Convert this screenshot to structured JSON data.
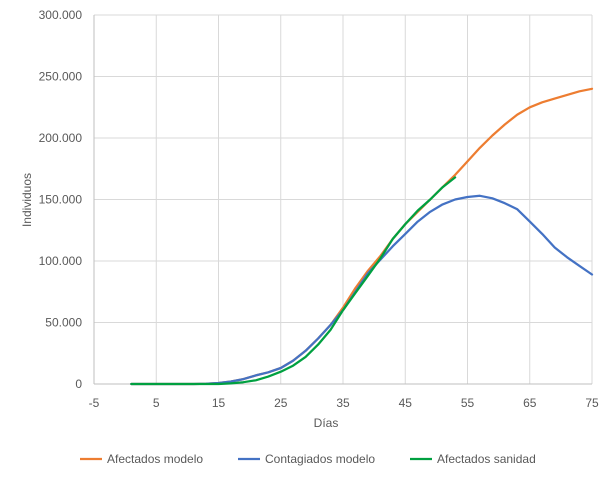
{
  "chart_data": {
    "type": "line",
    "title": "",
    "xlabel": "Días",
    "ylabel": "Individuos",
    "xlim": [
      -5,
      75
    ],
    "ylim": [
      0,
      300000
    ],
    "x_ticks": [
      -5,
      5,
      15,
      25,
      35,
      45,
      55,
      65,
      75
    ],
    "x_tick_labels": [
      "-5",
      "5",
      "15",
      "25",
      "35",
      "45",
      "55",
      "65",
      "75"
    ],
    "y_ticks": [
      0,
      50000,
      100000,
      150000,
      200000,
      250000,
      300000
    ],
    "y_tick_labels": [
      "0",
      "50.000",
      "100.000",
      "150.000",
      "200.000",
      "250.000",
      "300.000"
    ],
    "grid": true,
    "legend_position": "bottom",
    "series": [
      {
        "name": "Afectados modelo",
        "color": "#ED7D31",
        "x": [
          1,
          3,
          5,
          7,
          9,
          11,
          13,
          15,
          17,
          19,
          21,
          23,
          25,
          27,
          29,
          31,
          33,
          35,
          37,
          39,
          41,
          43,
          45,
          47,
          49,
          51,
          53,
          55,
          57,
          59,
          61,
          63,
          65,
          67,
          69,
          71,
          73,
          75
        ],
        "y": [
          0,
          0,
          0,
          0,
          0,
          0,
          200,
          800,
          2000,
          4000,
          7000,
          9500,
          13000,
          19000,
          27000,
          37000,
          48000,
          62000,
          78000,
          92000,
          104000,
          118000,
          130000,
          140000,
          150000,
          160000,
          170000,
          181000,
          192000,
          202000,
          211000,
          219000,
          225000,
          229000,
          232000,
          235000,
          238000,
          240000
        ]
      },
      {
        "name": "Contagiados modelo",
        "color": "#4472C4",
        "x": [
          1,
          3,
          5,
          7,
          9,
          11,
          13,
          15,
          17,
          19,
          21,
          23,
          25,
          27,
          29,
          31,
          33,
          35,
          37,
          39,
          41,
          43,
          45,
          47,
          49,
          51,
          53,
          55,
          57,
          59,
          61,
          63,
          65,
          67,
          69,
          71,
          73,
          75
        ],
        "y": [
          0,
          0,
          0,
          0,
          0,
          0,
          200,
          800,
          2000,
          4000,
          7000,
          9500,
          13000,
          19000,
          27000,
          37000,
          48000,
          60000,
          75000,
          90000,
          101000,
          112000,
          122000,
          132000,
          140000,
          146000,
          150000,
          152000,
          153000,
          151000,
          147000,
          142000,
          132000,
          122000,
          111000,
          103000,
          96000,
          89000
        ]
      },
      {
        "name": "Afectados sanidad",
        "color": "#00A040",
        "x": [
          1,
          3,
          5,
          7,
          9,
          11,
          13,
          15,
          17,
          19,
          21,
          23,
          25,
          27,
          29,
          31,
          33,
          35,
          37,
          39,
          41,
          43,
          45,
          47,
          49,
          51,
          53
        ],
        "y": [
          0,
          0,
          0,
          0,
          0,
          0,
          0,
          0,
          500,
          1500,
          3000,
          6000,
          10000,
          15000,
          22000,
          32000,
          44000,
          60000,
          74000,
          88000,
          102000,
          118000,
          130000,
          141000,
          150000,
          160000,
          168000
        ]
      }
    ]
  }
}
